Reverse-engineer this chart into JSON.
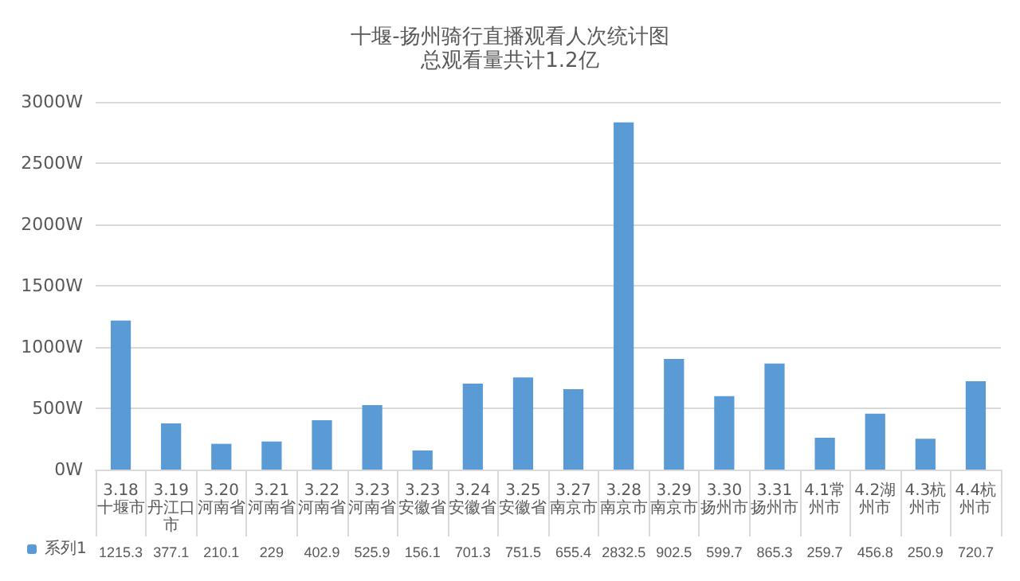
{
  "chart_data": {
    "type": "bar",
    "title": "十堰-扬州骑行直播观看人次统计图",
    "subtitle": "总观看量共计1.2亿",
    "categories": [
      "3.18十堰市",
      "3.19丹江口市",
      "3.20河南省",
      "3.21河南省",
      "3.22河南省",
      "3.23河南省",
      "3.23安徽省",
      "3.24安徽省",
      "3.25安徽省",
      "3.27南京市",
      "3.28南京市",
      "3.29南京市",
      "3.30扬州市",
      "3.31扬州市",
      "4.1常州市",
      "4.2湖州市",
      "4.3杭州市",
      "4.4杭州市"
    ],
    "series": [
      {
        "name": "系列1",
        "color": "#5b9bd5",
        "values": [
          1215.3,
          377.1,
          210.1,
          229,
          402.9,
          525.9,
          156.1,
          701.3,
          751.5,
          655.4,
          2832.5,
          902.5,
          599.7,
          865.3,
          259.7,
          456.8,
          250.9,
          720.7
        ]
      }
    ],
    "ylim": [
      0,
      3000
    ],
    "yticks": [
      {
        "value": 0,
        "label": "0W"
      },
      {
        "value": 500,
        "label": "500W"
      },
      {
        "value": 1000,
        "label": "1000W"
      },
      {
        "value": 1500,
        "label": "1500W"
      },
      {
        "value": 2000,
        "label": "2000W"
      },
      {
        "value": 2500,
        "label": "2500W"
      },
      {
        "value": 3000,
        "label": "3000W"
      }
    ],
    "grid": "y",
    "legend": "bottom left",
    "data_labels": true
  }
}
